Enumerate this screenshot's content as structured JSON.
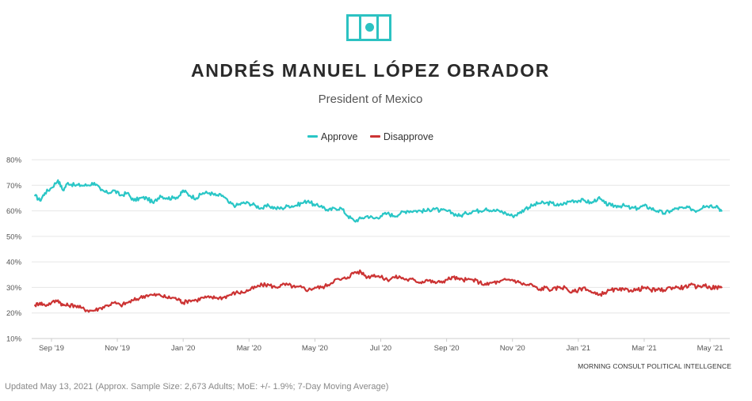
{
  "header": {
    "flag_icon": "mexico-flag-icon",
    "title": "ANDRÉS MANUEL LÓPEZ OBRADOR",
    "subtitle": "President of Mexico"
  },
  "colors": {
    "approve": "#29c6c6",
    "disapprove": "#cc3333",
    "grid": "#e6e6e6",
    "axis": "#cccccc",
    "text": "#555555"
  },
  "attribution": "MORNING CONSULT POLITICAL INTELLGENCE",
  "footnote": "Updated May 13, 2021 (Approx. Sample Size: 2,673 Adults; MoE: +/- 1.9%; 7-Day Moving Average)",
  "chart_data": {
    "type": "line",
    "title": "ANDRÉS MANUEL LÓPEZ OBRADOR",
    "subtitle": "President of Mexico",
    "xlabel": "",
    "ylabel": "",
    "ylim": [
      10,
      80
    ],
    "yticks": [
      10,
      20,
      30,
      40,
      50,
      60,
      70,
      80
    ],
    "ytick_labels": [
      "10%",
      "20%",
      "30%",
      "40%",
      "50%",
      "60%",
      "70%",
      "80%"
    ],
    "x_range_months": [
      -0.6,
      20.6
    ],
    "xticks": [
      {
        "label": "Sep '19",
        "month": 0
      },
      {
        "label": "Nov '19",
        "month": 2
      },
      {
        "label": "Jan '20",
        "month": 4
      },
      {
        "label": "Mar '20",
        "month": 6
      },
      {
        "label": "May '20",
        "month": 8
      },
      {
        "label": "Jul '20",
        "month": 10
      },
      {
        "label": "Sep '20",
        "month": 12
      },
      {
        "label": "Nov '20",
        "month": 14
      },
      {
        "label": "Jan '21",
        "month": 16
      },
      {
        "label": "Mar '21",
        "month": 18
      },
      {
        "label": "May '21",
        "month": 20
      }
    ],
    "grid": true,
    "legend": "top-center",
    "x_unit": "months since Sep 1, 2019",
    "series": [
      {
        "name": "Approve",
        "color": "#29c6c6",
        "points": [
          [
            -0.5,
            66
          ],
          [
            -0.35,
            64
          ],
          [
            -0.2,
            67
          ],
          [
            0,
            69
          ],
          [
            0.2,
            72
          ],
          [
            0.35,
            68
          ],
          [
            0.5,
            71
          ],
          [
            0.7,
            70
          ],
          [
            0.9,
            70
          ],
          [
            1.1,
            70
          ],
          [
            1.3,
            71
          ],
          [
            1.5,
            68
          ],
          [
            1.7,
            67
          ],
          [
            1.9,
            68
          ],
          [
            2.1,
            66
          ],
          [
            2.3,
            67
          ],
          [
            2.5,
            64
          ],
          [
            2.7,
            65
          ],
          [
            2.9,
            65
          ],
          [
            3.1,
            63
          ],
          [
            3.3,
            66
          ],
          [
            3.5,
            65
          ],
          [
            3.7,
            65
          ],
          [
            3.9,
            66
          ],
          [
            4.0,
            68
          ],
          [
            4.2,
            66
          ],
          [
            4.4,
            65
          ],
          [
            4.6,
            67
          ],
          [
            4.8,
            67
          ],
          [
            5.0,
            66
          ],
          [
            5.2,
            66
          ],
          [
            5.4,
            63
          ],
          [
            5.6,
            62
          ],
          [
            5.8,
            63
          ],
          [
            6.0,
            63
          ],
          [
            6.2,
            62
          ],
          [
            6.4,
            61
          ],
          [
            6.6,
            62
          ],
          [
            6.8,
            61
          ],
          [
            7.0,
            61
          ],
          [
            7.2,
            62
          ],
          [
            7.4,
            62
          ],
          [
            7.6,
            63
          ],
          [
            7.8,
            64
          ],
          [
            8.0,
            62
          ],
          [
            8.2,
            62
          ],
          [
            8.4,
            60
          ],
          [
            8.6,
            61
          ],
          [
            8.8,
            61
          ],
          [
            9.0,
            58
          ],
          [
            9.2,
            56
          ],
          [
            9.4,
            57
          ],
          [
            9.6,
            58
          ],
          [
            9.8,
            57
          ],
          [
            10.0,
            58
          ],
          [
            10.2,
            59
          ],
          [
            10.4,
            58
          ],
          [
            10.6,
            59
          ],
          [
            10.8,
            60
          ],
          [
            11.0,
            60
          ],
          [
            11.2,
            60
          ],
          [
            11.4,
            60
          ],
          [
            11.6,
            61
          ],
          [
            11.8,
            60
          ],
          [
            12.0,
            60
          ],
          [
            12.2,
            59
          ],
          [
            12.4,
            58
          ],
          [
            12.6,
            59
          ],
          [
            12.8,
            60
          ],
          [
            13.0,
            60
          ],
          [
            13.2,
            61
          ],
          [
            13.4,
            60
          ],
          [
            13.6,
            60
          ],
          [
            13.8,
            59
          ],
          [
            14.0,
            58
          ],
          [
            14.2,
            59
          ],
          [
            14.4,
            61
          ],
          [
            14.6,
            62
          ],
          [
            14.8,
            63
          ],
          [
            15.0,
            63
          ],
          [
            15.2,
            63
          ],
          [
            15.4,
            62
          ],
          [
            15.6,
            63
          ],
          [
            15.8,
            64
          ],
          [
            16.0,
            64
          ],
          [
            16.2,
            64
          ],
          [
            16.4,
            63
          ],
          [
            16.6,
            65
          ],
          [
            16.8,
            63
          ],
          [
            17.0,
            62
          ],
          [
            17.2,
            62
          ],
          [
            17.4,
            62
          ],
          [
            17.6,
            61
          ],
          [
            17.8,
            61
          ],
          [
            18.0,
            62
          ],
          [
            18.2,
            61
          ],
          [
            18.4,
            60
          ],
          [
            18.6,
            59
          ],
          [
            18.8,
            60
          ],
          [
            19.0,
            61
          ],
          [
            19.2,
            61
          ],
          [
            19.4,
            61
          ],
          [
            19.6,
            60
          ],
          [
            19.8,
            62
          ],
          [
            20.0,
            62
          ],
          [
            20.2,
            62
          ],
          [
            20.35,
            60
          ]
        ]
      },
      {
        "name": "Disapprove",
        "color": "#cc3333",
        "points": [
          [
            -0.5,
            23
          ],
          [
            -0.35,
            24
          ],
          [
            -0.2,
            23
          ],
          [
            0,
            24
          ],
          [
            0.2,
            25
          ],
          [
            0.35,
            23
          ],
          [
            0.5,
            23
          ],
          [
            0.7,
            23
          ],
          [
            0.9,
            22
          ],
          [
            1.1,
            21
          ],
          [
            1.3,
            21
          ],
          [
            1.5,
            22
          ],
          [
            1.7,
            23
          ],
          [
            1.9,
            24
          ],
          [
            2.1,
            23
          ],
          [
            2.3,
            24
          ],
          [
            2.5,
            25
          ],
          [
            2.7,
            26
          ],
          [
            2.9,
            27
          ],
          [
            3.1,
            27
          ],
          [
            3.3,
            27
          ],
          [
            3.5,
            26
          ],
          [
            3.7,
            26
          ],
          [
            3.9,
            25
          ],
          [
            4.0,
            24
          ],
          [
            4.2,
            25
          ],
          [
            4.4,
            25
          ],
          [
            4.6,
            26
          ],
          [
            4.8,
            26
          ],
          [
            5.0,
            26
          ],
          [
            5.2,
            26
          ],
          [
            5.4,
            27
          ],
          [
            5.6,
            28
          ],
          [
            5.8,
            28
          ],
          [
            6.0,
            29
          ],
          [
            6.2,
            30
          ],
          [
            6.4,
            31
          ],
          [
            6.6,
            31
          ],
          [
            6.8,
            30
          ],
          [
            7.0,
            31
          ],
          [
            7.2,
            31
          ],
          [
            7.4,
            30
          ],
          [
            7.6,
            30
          ],
          [
            7.8,
            29
          ],
          [
            8.0,
            30
          ],
          [
            8.2,
            30
          ],
          [
            8.4,
            31
          ],
          [
            8.6,
            33
          ],
          [
            8.8,
            33
          ],
          [
            9.0,
            34
          ],
          [
            9.2,
            36
          ],
          [
            9.4,
            36
          ],
          [
            9.6,
            34
          ],
          [
            9.8,
            35
          ],
          [
            10.0,
            34
          ],
          [
            10.2,
            33
          ],
          [
            10.4,
            34
          ],
          [
            10.6,
            34
          ],
          [
            10.8,
            33
          ],
          [
            11.0,
            33
          ],
          [
            11.2,
            32
          ],
          [
            11.4,
            33
          ],
          [
            11.6,
            32
          ],
          [
            11.8,
            32
          ],
          [
            12.0,
            33
          ],
          [
            12.2,
            34
          ],
          [
            12.4,
            33
          ],
          [
            12.6,
            33
          ],
          [
            12.8,
            33
          ],
          [
            13.0,
            32
          ],
          [
            13.2,
            31
          ],
          [
            13.4,
            32
          ],
          [
            13.6,
            32
          ],
          [
            13.8,
            33
          ],
          [
            14.0,
            33
          ],
          [
            14.2,
            32
          ],
          [
            14.4,
            31
          ],
          [
            14.6,
            31
          ],
          [
            14.8,
            29
          ],
          [
            15.0,
            30
          ],
          [
            15.2,
            29
          ],
          [
            15.4,
            30
          ],
          [
            15.6,
            30
          ],
          [
            15.8,
            28
          ],
          [
            16.0,
            29
          ],
          [
            16.2,
            30
          ],
          [
            16.4,
            28
          ],
          [
            16.6,
            27
          ],
          [
            16.8,
            28
          ],
          [
            17.0,
            29
          ],
          [
            17.2,
            29
          ],
          [
            17.4,
            29
          ],
          [
            17.6,
            29
          ],
          [
            17.8,
            29
          ],
          [
            18.0,
            30
          ],
          [
            18.2,
            29
          ],
          [
            18.4,
            29
          ],
          [
            18.6,
            29
          ],
          [
            18.8,
            30
          ],
          [
            19.0,
            30
          ],
          [
            19.2,
            30
          ],
          [
            19.4,
            31
          ],
          [
            19.6,
            30
          ],
          [
            19.8,
            31
          ],
          [
            20.0,
            30
          ],
          [
            20.2,
            30
          ],
          [
            20.35,
            30
          ]
        ]
      }
    ]
  }
}
